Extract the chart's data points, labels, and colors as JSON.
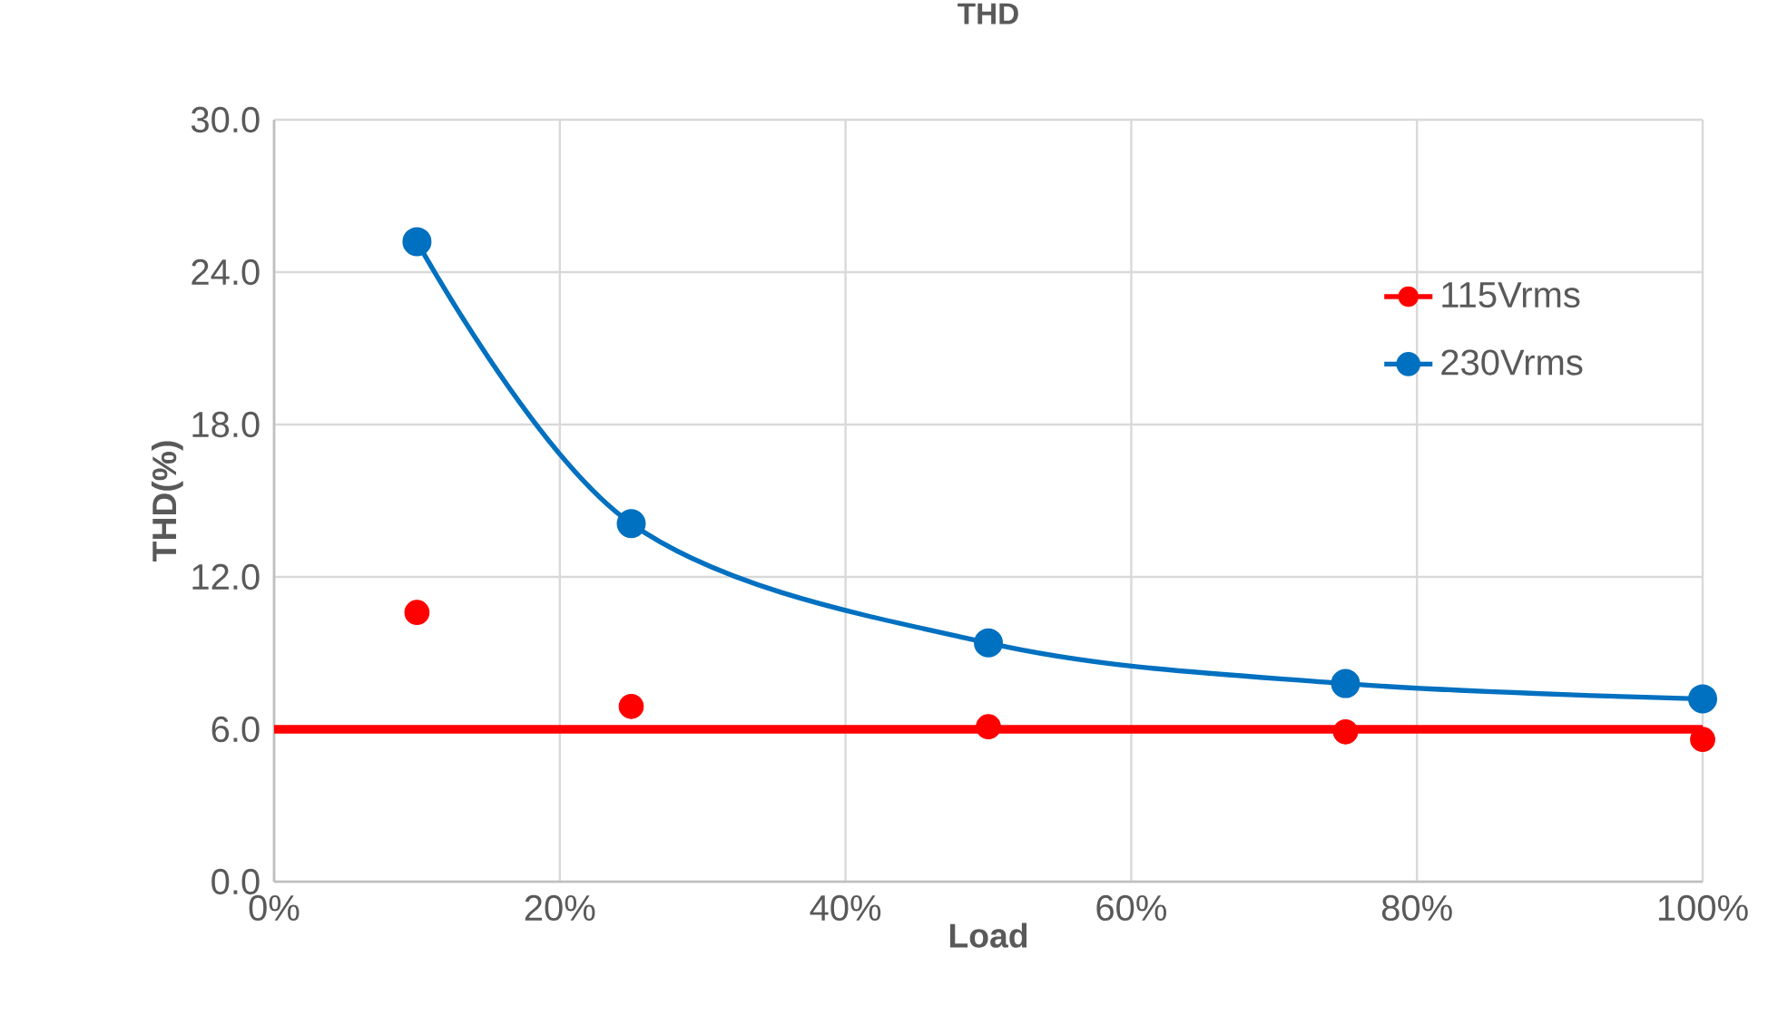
{
  "chart_data": {
    "type": "line",
    "title": "THD",
    "xlabel": "Load",
    "ylabel": "THD(%)",
    "x": [
      0.1,
      0.25,
      0.5,
      0.75,
      1.0
    ],
    "series": [
      {
        "name": "115Vrms",
        "type": "scatter",
        "color": "#ff0000",
        "values": [
          10.6,
          6.9,
          6.1,
          5.9,
          5.6
        ]
      },
      {
        "name": "230Vrms",
        "color": "#0070c0",
        "values": [
          25.2,
          14.1,
          9.4,
          7.8,
          7.2
        ]
      }
    ],
    "ref_lines": [
      {
        "axis": "y",
        "value": 6.0,
        "color": "#ff0000"
      }
    ],
    "xlim": [
      0,
      1
    ],
    "ylim": [
      0,
      30
    ],
    "xticks": [
      {
        "value": 0,
        "label": "0%"
      },
      {
        "value": 0.2,
        "label": "20%"
      },
      {
        "value": 0.4,
        "label": "40%"
      },
      {
        "value": 0.6,
        "label": "60%"
      },
      {
        "value": 0.8,
        "label": "80%"
      },
      {
        "value": 1.0,
        "label": "100%"
      }
    ],
    "yticks": [
      {
        "value": 0,
        "label": "0.0"
      },
      {
        "value": 6,
        "label": "6.0"
      },
      {
        "value": 12,
        "label": "12.0"
      },
      {
        "value": 18,
        "label": "18.0"
      },
      {
        "value": 24,
        "label": "24.0"
      },
      {
        "value": 30,
        "label": "30.0"
      }
    ],
    "grid": true,
    "legend": "right",
    "marker": "circle"
  }
}
